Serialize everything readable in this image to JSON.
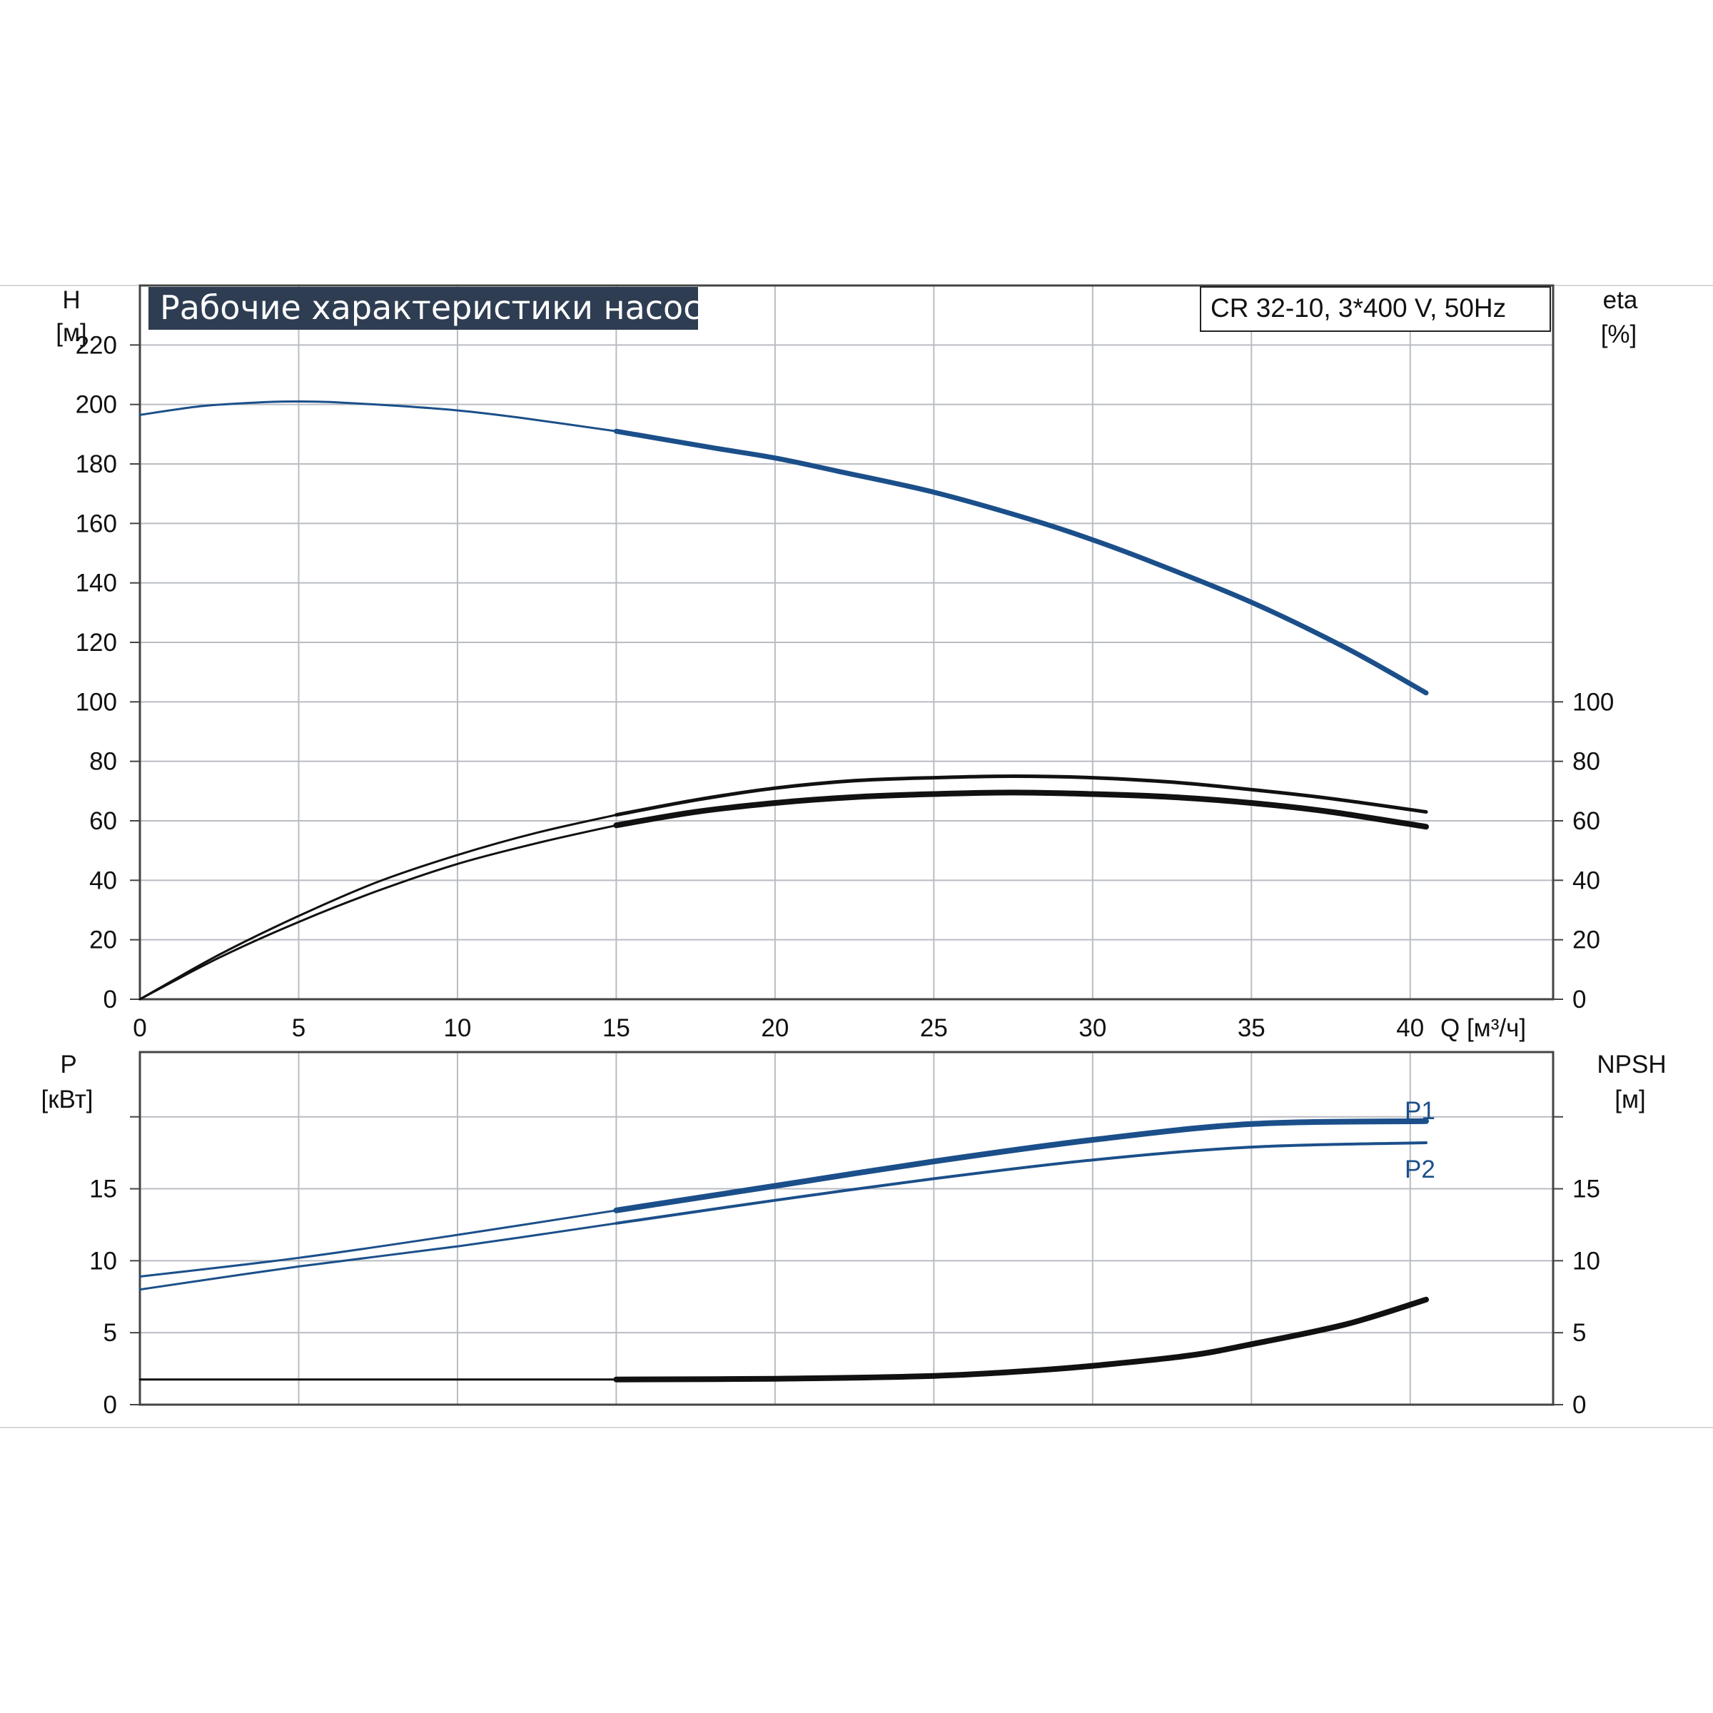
{
  "chart_data": [
    {
      "type": "line",
      "title": "Рабочие характеристики насоса",
      "model": "CR 32-10, 3*400 V, 50Hz",
      "left_axis": {
        "label": "H",
        "unit": "[м]",
        "ticks": [
          "0",
          "20",
          "40",
          "60",
          "80",
          "100",
          "120",
          "140",
          "160",
          "180",
          "200",
          "220"
        ],
        "ylim": [
          0,
          240
        ]
      },
      "right_axis": {
        "label": "eta",
        "unit": "[%]",
        "ticks": [
          "0",
          "20",
          "40",
          "60",
          "80",
          "100"
        ],
        "ylim": [
          0,
          240
        ]
      },
      "x_axis": {
        "label": "Q [м³/ч]",
        "ticks": [
          "0",
          "5",
          "10",
          "15",
          "20",
          "25",
          "30",
          "35",
          "40"
        ],
        "xlim": [
          0,
          44.5
        ]
      },
      "grid": true,
      "series": [
        {
          "axis": "left",
          "color": "#1b4f8a",
          "x": [
            0,
            2,
            4,
            5,
            6,
            8,
            10,
            12,
            15,
            18,
            20,
            22,
            25,
            28,
            30,
            32,
            35,
            38,
            40.5
          ],
          "y": [
            196.5,
            199.5,
            200.8,
            201,
            200.8,
            199.6,
            198,
            195.5,
            191,
            185.5,
            182,
            177.5,
            170.5,
            161.5,
            154.5,
            146.5,
            133.5,
            118,
            103
          ]
        },
        {
          "axis": "right",
          "color": "#111111",
          "x": [
            0,
            2.5,
            5,
            7.5,
            10,
            12.5,
            15,
            17.5,
            20,
            22.5,
            25,
            27.5,
            30,
            32.5,
            35,
            37.5,
            40.5
          ],
          "y": [
            0,
            15,
            28,
            39.5,
            48.5,
            56,
            62,
            67,
            71,
            73.5,
            74.5,
            75,
            74.5,
            73,
            70.5,
            67.5,
            63
          ]
        },
        {
          "axis": "right",
          "color": "#111111",
          "x": [
            0,
            2.5,
            5,
            7.5,
            10,
            12.5,
            15,
            17.5,
            20,
            22.5,
            25,
            27.5,
            30,
            32.5,
            35,
            37.5,
            40.5
          ],
          "y": [
            0,
            14,
            26,
            36.5,
            45.5,
            52.5,
            58.5,
            63,
            66,
            68,
            69,
            69.5,
            69,
            68,
            66,
            63,
            58
          ]
        }
      ]
    },
    {
      "type": "line",
      "left_axis": {
        "label": "P",
        "unit": "[кВт]",
        "ticks": [
          "0",
          "5",
          "10",
          "15"
        ],
        "ylim": [
          0,
          24.5
        ]
      },
      "right_axis": {
        "label": "NPSH",
        "unit": "[м]",
        "ticks": [
          "0",
          "5",
          "10",
          "15"
        ],
        "ylim": [
          0,
          24.5
        ]
      },
      "x_axis": {
        "xlim": [
          0,
          44.5
        ]
      },
      "grid": true,
      "series": [
        {
          "name": "P1",
          "color": "#1b4f8a",
          "x": [
            0,
            5,
            10,
            15,
            20,
            25,
            30,
            35,
            40.5
          ],
          "y": [
            8.9,
            10.2,
            11.8,
            13.5,
            15.2,
            16.9,
            18.4,
            19.5,
            19.7
          ]
        },
        {
          "name": "P2",
          "color": "#1b4f8a",
          "x": [
            0,
            5,
            10,
            15,
            20,
            25,
            30,
            35,
            40.5
          ],
          "y": [
            8,
            9.6,
            11,
            12.6,
            14.2,
            15.7,
            17,
            17.9,
            18.2
          ]
        },
        {
          "color": "#111111",
          "x": [
            0,
            15,
            20,
            25,
            28,
            30,
            33,
            35,
            38,
            40.5
          ],
          "y": [
            1.75,
            1.75,
            1.8,
            2,
            2.35,
            2.7,
            3.4,
            4.2,
            5.6,
            7.3
          ]
        }
      ]
    }
  ]
}
